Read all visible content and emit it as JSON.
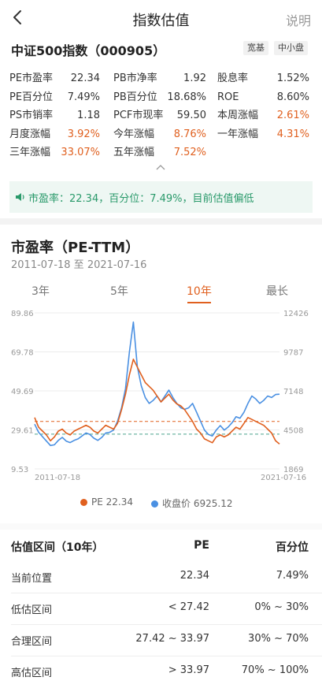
{
  "nav": {
    "title": "指数估值",
    "help": "说明"
  },
  "index": {
    "name": "中证500指数（000905）",
    "tags": [
      "宽基",
      "中小盘"
    ]
  },
  "metrics": [
    [
      {
        "label": "PE市盈率",
        "value": "22.34",
        "up": false
      },
      {
        "label": "PB市净率",
        "value": "1.92",
        "up": false
      },
      {
        "label": "股息率",
        "value": "1.52%",
        "up": false
      }
    ],
    [
      {
        "label": "PE百分位",
        "value": "7.49%",
        "up": false
      },
      {
        "label": "PB百分位",
        "value": "18.68%",
        "up": false
      },
      {
        "label": "ROE",
        "value": "8.60%",
        "up": false
      }
    ],
    [
      {
        "label": "PS市销率",
        "value": "1.18",
        "up": false
      },
      {
        "label": "PCF市现率",
        "value": "59.50",
        "up": false
      },
      {
        "label": "本周涨幅",
        "value": "2.61%",
        "up": true
      }
    ],
    [
      {
        "label": "月度涨幅",
        "value": "3.92%",
        "up": true
      },
      {
        "label": "今年涨幅",
        "value": "8.76%",
        "up": true
      },
      {
        "label": "一年涨幅",
        "value": "4.31%",
        "up": true
      }
    ],
    [
      {
        "label": "三年涨幅",
        "value": "33.07%",
        "up": true
      },
      {
        "label": "五年涨幅",
        "value": "7.52%",
        "up": true
      }
    ]
  ],
  "notice": {
    "text": "市盈率：22.34，百分位：7.49%，目前估值偏低"
  },
  "section": {
    "title": "市盈率（PE-TTM）",
    "date_range": "2011-07-18 至 2021-07-16"
  },
  "tabs": [
    {
      "label": "3年",
      "active": false
    },
    {
      "label": "5年",
      "active": false
    },
    {
      "label": "10年",
      "active": true
    },
    {
      "label": "最长",
      "active": false
    }
  ],
  "chart_data": {
    "type": "line",
    "x_start": "2011-07-18",
    "x_end": "2021-07-16",
    "left_axis": {
      "ticks": [
        "89.86",
        "69.78",
        "49.69",
        "29.61",
        "9.53"
      ],
      "range": [
        9.53,
        89.86
      ]
    },
    "right_axis": {
      "ticks": [
        "12426",
        "9787",
        "7148",
        "4508",
        "1869"
      ],
      "range": [
        1869,
        12426
      ]
    },
    "reference_lines": [
      {
        "value": 33.97,
        "color": "#e0601f"
      },
      {
        "value": 27.42,
        "color": "#4aa38c"
      }
    ],
    "series": [
      {
        "name": "PE",
        "legend_value": "22.34",
        "color": "#e0601f",
        "axis": "left",
        "values": [
          36,
          31,
          29,
          27,
          24,
          26,
          29,
          30,
          28,
          27,
          29,
          30,
          31,
          32,
          31,
          29,
          28,
          30,
          32,
          31,
          30,
          33,
          40,
          48,
          58,
          66,
          62,
          58,
          54,
          52,
          50,
          47,
          44,
          46,
          48,
          45,
          43,
          42,
          40,
          37,
          34,
          30,
          28,
          25,
          24,
          23,
          26,
          27,
          26,
          27,
          29,
          31,
          30,
          33,
          36,
          35,
          34,
          33,
          32,
          30,
          28,
          24,
          22.34
        ]
      },
      {
        "name": "收盘价",
        "legend_value": "6925.12",
        "color": "#4a90e2",
        "axis": "right",
        "values": [
          4900,
          4350,
          4050,
          3750,
          3450,
          3500,
          3800,
          4000,
          3750,
          3650,
          3800,
          3900,
          4100,
          4300,
          4200,
          3950,
          3800,
          4000,
          4300,
          4350,
          4500,
          5100,
          6000,
          7300,
          9800,
          11800,
          8800,
          7500,
          6700,
          6300,
          6500,
          6800,
          6400,
          6800,
          7200,
          6700,
          6300,
          6000,
          5900,
          6000,
          6300,
          5700,
          5100,
          4500,
          4200,
          4100,
          4500,
          4800,
          4500,
          4700,
          5000,
          5400,
          5300,
          5700,
          6300,
          6800,
          6600,
          6300,
          6500,
          6800,
          6700,
          6900,
          6925.12
        ]
      }
    ]
  },
  "table": {
    "headers": [
      "估值区间（10年）",
      "PE",
      "百分位"
    ],
    "rows": [
      [
        "当前位置",
        "22.34",
        "7.49%"
      ],
      [
        "低估区间",
        "< 27.42",
        "0% ~ 30%"
      ],
      [
        "合理区间",
        "27.42 ~ 33.97",
        "30% ~ 70%"
      ],
      [
        "高估区间",
        "> 33.97",
        "70% ~ 100%"
      ]
    ]
  }
}
